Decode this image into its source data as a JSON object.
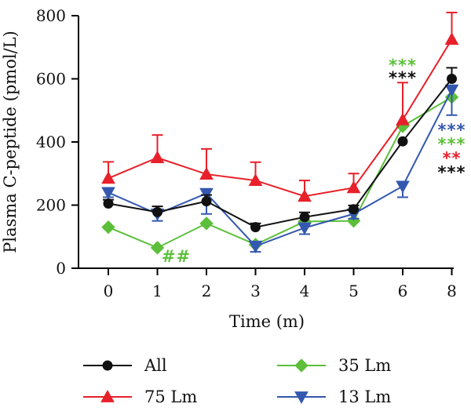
{
  "chart_data": {
    "type": "line",
    "title": "",
    "xlabel": "Time (m)",
    "ylabel": "Plasma C-peptide (pmol/L)",
    "categories": [
      "0",
      "1",
      "2",
      "3",
      "4",
      "5",
      "6",
      "8"
    ],
    "ylim": [
      0,
      800
    ],
    "yticks": [
      0,
      200,
      400,
      600,
      800
    ],
    "grid": false,
    "legend_position": "bottom",
    "series": [
      {
        "name": "All",
        "color": "#111111",
        "marker": "circle",
        "values": [
          205,
          178,
          212,
          130,
          162,
          187,
          402,
          600
        ],
        "errors": [
          12,
          18,
          20,
          12,
          15,
          12,
          0,
          35
        ]
      },
      {
        "name": "35 Lm",
        "color": "#5cbf3a",
        "marker": "diamond",
        "values": [
          130,
          65,
          142,
          75,
          148,
          150,
          450,
          542
        ],
        "errors": [
          0,
          0,
          0,
          0,
          0,
          0,
          0,
          0
        ]
      },
      {
        "name": "75 Lm",
        "color": "#e8202a",
        "marker": "triangle-up",
        "values": [
          285,
          350,
          298,
          278,
          228,
          255,
          470,
          725
        ],
        "errors": [
          52,
          72,
          80,
          58,
          50,
          45,
          118,
          85
        ]
      },
      {
        "name": "13 Lm",
        "color": "#3458b0",
        "marker": "triangle-down",
        "values": [
          240,
          172,
          237,
          70,
          128,
          172,
          260,
          565
        ],
        "errors": [
          15,
          22,
          65,
          18,
          20,
          15,
          35,
          80
        ]
      }
    ],
    "annotations": [
      {
        "text": "##",
        "color": "#5cbf3a",
        "x": 1,
        "y": 40
      },
      {
        "text": "***",
        "color": "#5cbf3a",
        "x": 6,
        "y": 645
      },
      {
        "text": "***",
        "color": "#111111",
        "x": 6,
        "y": 605
      },
      {
        "text": "***",
        "color": "#3458b0",
        "x": 8,
        "y": 440
      },
      {
        "text": "***",
        "color": "#5cbf3a",
        "x": 8,
        "y": 395
      },
      {
        "text": "**",
        "color": "#e8202a",
        "x": 8,
        "y": 350
      },
      {
        "text": "***",
        "color": "#111111",
        "x": 8,
        "y": 305
      }
    ]
  }
}
